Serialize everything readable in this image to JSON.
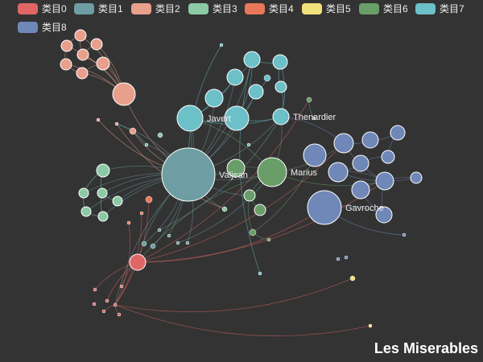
{
  "title": "Les Miserables",
  "legend": [
    {
      "label": "类目0",
      "color": "#e06666"
    },
    {
      "label": "类目1",
      "color": "#6e9ea3"
    },
    {
      "label": "类目2",
      "color": "#e8a08c"
    },
    {
      "label": "类目3",
      "color": "#8ccaa6"
    },
    {
      "label": "类目4",
      "color": "#e8785a"
    },
    {
      "label": "类目5",
      "color": "#f2e07a"
    },
    {
      "label": "类目6",
      "color": "#6a9e68"
    },
    {
      "label": "类目7",
      "color": "#6cc0c8"
    },
    {
      "label": "类目8",
      "color": "#7088b8"
    }
  ],
  "labeled_nodes": [
    "Javert",
    "Thenardier",
    "Valjean",
    "Marius",
    "Gavroche"
  ]
}
